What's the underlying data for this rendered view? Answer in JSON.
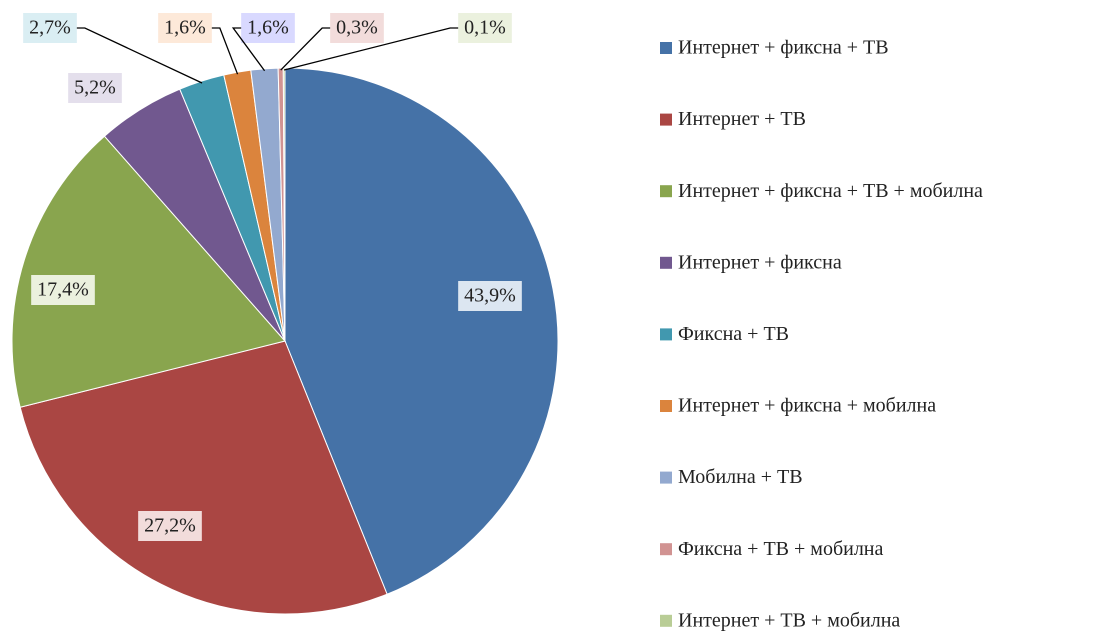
{
  "chart_data": {
    "type": "pie",
    "categories": [
      "Интернет + фиксна + ТВ",
      "Интернет + ТВ",
      "Интернет + фиксна + ТВ + мобилна",
      "Интернет + фиксна",
      "Фиксна + ТВ",
      "Интернет + фиксна + мобилна",
      "Мобилна + ТВ",
      "Фиксна + ТВ + мобилна",
      "Интернет + ТВ + мобилна"
    ],
    "values": [
      43.9,
      27.2,
      17.4,
      5.2,
      2.7,
      1.6,
      1.6,
      0.3,
      0.1
    ],
    "value_labels": [
      "43,9%",
      "27,2%",
      "17,4%",
      "5,2%",
      "2,7%",
      "1,6%",
      "1,6%",
      "0,3%",
      "0,1%"
    ],
    "colors": [
      "#4572a7",
      "#aa4643",
      "#89a54e",
      "#71588f",
      "#4198af",
      "#db843d",
      "#93a9cf",
      "#d19392",
      "#b9cd96"
    ],
    "legend": "right"
  }
}
